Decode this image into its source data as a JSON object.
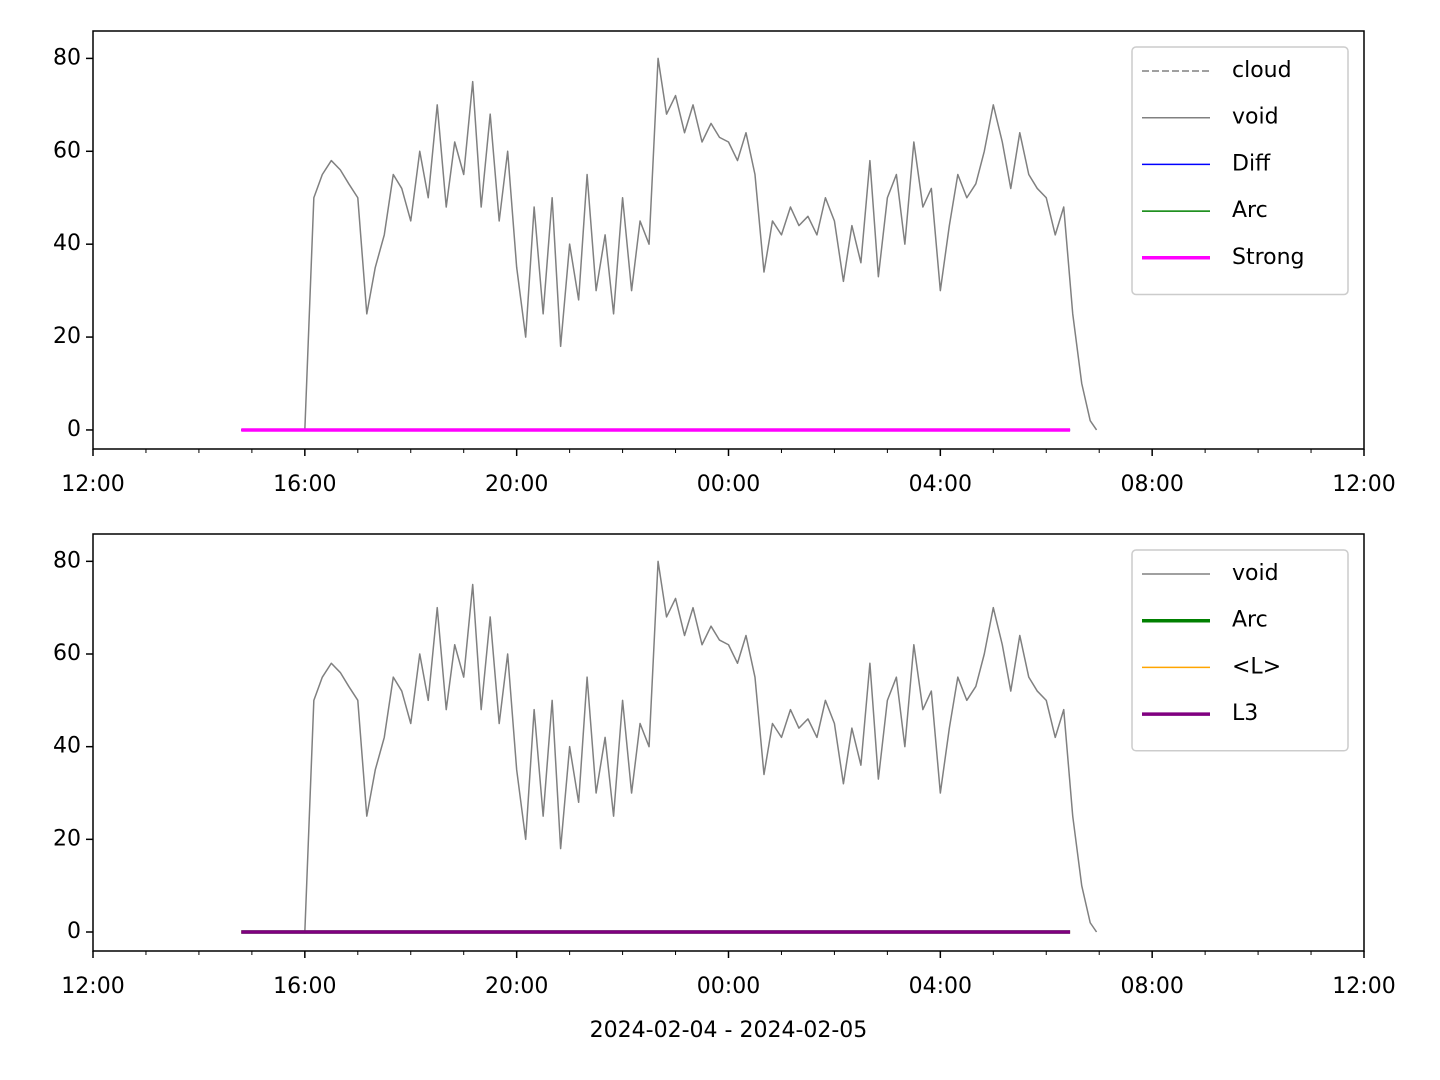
{
  "chart_data": [
    {
      "type": "line",
      "xlim": [
        12,
        36
      ],
      "ylim": [
        -4.1,
        85.9
      ],
      "xticks": [
        {
          "value": 12,
          "label": "12:00"
        },
        {
          "value": 16,
          "label": "16:00"
        },
        {
          "value": 20,
          "label": "20:00"
        },
        {
          "value": 24,
          "label": "00:00"
        },
        {
          "value": 28,
          "label": "04:00"
        },
        {
          "value": 32,
          "label": "08:00"
        },
        {
          "value": 36,
          "label": "12:00"
        }
      ],
      "xminorticks": [
        13,
        14,
        15,
        17,
        18,
        19,
        21,
        22,
        23,
        25,
        26,
        27,
        29,
        30,
        31,
        33,
        34,
        35
      ],
      "yticks": [
        0,
        20,
        40,
        60,
        80
      ],
      "legend": "upper right",
      "series": [
        {
          "name": "cloud",
          "color": "#808080",
          "width": 1.5,
          "linestyle": "dashed",
          "x": [
            14.8,
            30.45
          ],
          "values": [
            0,
            0
          ]
        },
        {
          "name": "void",
          "color": "#808080",
          "width": 1.5,
          "linestyle": "solid",
          "x": [
            16.0,
            16.17,
            16.33,
            16.5,
            16.67,
            16.83,
            17.0,
            17.17,
            17.33,
            17.5,
            17.67,
            17.83,
            18.0,
            18.17,
            18.33,
            18.5,
            18.67,
            18.83,
            19.0,
            19.17,
            19.33,
            19.5,
            19.67,
            19.83,
            20.0,
            20.17,
            20.33,
            20.5,
            20.67,
            20.83,
            21.0,
            21.17,
            21.33,
            21.5,
            21.67,
            21.83,
            22.0,
            22.17,
            22.33,
            22.5,
            22.67,
            22.83,
            23.0,
            23.17,
            23.33,
            23.5,
            23.67,
            23.83,
            24.0,
            24.17,
            24.33,
            24.5,
            24.67,
            24.83,
            25.0,
            25.17,
            25.33,
            25.5,
            25.67,
            25.83,
            26.0,
            26.17,
            26.33,
            26.5,
            26.67,
            26.83,
            27.0,
            27.17,
            27.33,
            27.5,
            27.67,
            27.83,
            28.0,
            28.17,
            28.33,
            28.5,
            28.67,
            28.83,
            29.0,
            29.17,
            29.33,
            29.5,
            29.67,
            29.83,
            30.0,
            30.17,
            30.33,
            30.5,
            30.67,
            30.83,
            30.95
          ],
          "values": [
            0,
            50,
            55,
            58,
            56,
            53,
            50,
            25,
            35,
            42,
            55,
            52,
            45,
            60,
            50,
            70,
            48,
            62,
            55,
            75,
            48,
            68,
            45,
            60,
            35,
            20,
            48,
            25,
            50,
            18,
            40,
            28,
            55,
            30,
            42,
            25,
            50,
            30,
            45,
            40,
            80,
            68,
            72,
            64,
            70,
            62,
            66,
            63,
            62,
            58,
            64,
            55,
            34,
            45,
            42,
            48,
            44,
            46,
            42,
            50,
            45,
            32,
            44,
            36,
            58,
            33,
            50,
            55,
            40,
            62,
            48,
            52,
            30,
            44,
            55,
            50,
            53,
            60,
            70,
            62,
            52,
            64,
            55,
            52,
            50,
            42,
            48,
            25,
            10,
            2,
            0
          ]
        },
        {
          "name": "Diff",
          "color": "#0000ff",
          "width": 1.5,
          "linestyle": "solid",
          "x": [
            14.8,
            30.45
          ],
          "values": [
            0,
            0
          ]
        },
        {
          "name": "Arc",
          "color": "#008000",
          "width": 1.5,
          "linestyle": "solid",
          "x": [
            14.8,
            30.45
          ],
          "values": [
            0,
            0
          ]
        },
        {
          "name": "Strong",
          "color": "#ff00ff",
          "width": 3.5,
          "linestyle": "solid",
          "x": [
            14.8,
            30.45
          ],
          "values": [
            0,
            0
          ]
        }
      ]
    },
    {
      "type": "line",
      "xlim": [
        12,
        36
      ],
      "ylim": [
        -4.1,
        85.9
      ],
      "xlabel": "2024-02-04 - 2024-02-05",
      "xticks": [
        {
          "value": 12,
          "label": "12:00"
        },
        {
          "value": 16,
          "label": "16:00"
        },
        {
          "value": 20,
          "label": "20:00"
        },
        {
          "value": 24,
          "label": "00:00"
        },
        {
          "value": 28,
          "label": "04:00"
        },
        {
          "value": 32,
          "label": "08:00"
        },
        {
          "value": 36,
          "label": "12:00"
        }
      ],
      "xminorticks": [
        13,
        14,
        15,
        17,
        18,
        19,
        21,
        22,
        23,
        25,
        26,
        27,
        29,
        30,
        31,
        33,
        34,
        35
      ],
      "yticks": [
        0,
        20,
        40,
        60,
        80
      ],
      "legend": "upper right",
      "series": [
        {
          "name": "void",
          "color": "#808080",
          "width": 1.5,
          "linestyle": "solid",
          "x": [
            16.0,
            16.17,
            16.33,
            16.5,
            16.67,
            16.83,
            17.0,
            17.17,
            17.33,
            17.5,
            17.67,
            17.83,
            18.0,
            18.17,
            18.33,
            18.5,
            18.67,
            18.83,
            19.0,
            19.17,
            19.33,
            19.5,
            19.67,
            19.83,
            20.0,
            20.17,
            20.33,
            20.5,
            20.67,
            20.83,
            21.0,
            21.17,
            21.33,
            21.5,
            21.67,
            21.83,
            22.0,
            22.17,
            22.33,
            22.5,
            22.67,
            22.83,
            23.0,
            23.17,
            23.33,
            23.5,
            23.67,
            23.83,
            24.0,
            24.17,
            24.33,
            24.5,
            24.67,
            24.83,
            25.0,
            25.17,
            25.33,
            25.5,
            25.67,
            25.83,
            26.0,
            26.17,
            26.33,
            26.5,
            26.67,
            26.83,
            27.0,
            27.17,
            27.33,
            27.5,
            27.67,
            27.83,
            28.0,
            28.17,
            28.33,
            28.5,
            28.67,
            28.83,
            29.0,
            29.17,
            29.33,
            29.5,
            29.67,
            29.83,
            30.0,
            30.17,
            30.33,
            30.5,
            30.67,
            30.83,
            30.95
          ],
          "values": [
            0,
            50,
            55,
            58,
            56,
            53,
            50,
            25,
            35,
            42,
            55,
            52,
            45,
            60,
            50,
            70,
            48,
            62,
            55,
            75,
            48,
            68,
            45,
            60,
            35,
            20,
            48,
            25,
            50,
            18,
            40,
            28,
            55,
            30,
            42,
            25,
            50,
            30,
            45,
            40,
            80,
            68,
            72,
            64,
            70,
            62,
            66,
            63,
            62,
            58,
            64,
            55,
            34,
            45,
            42,
            48,
            44,
            46,
            42,
            50,
            45,
            32,
            44,
            36,
            58,
            33,
            50,
            55,
            40,
            62,
            48,
            52,
            30,
            44,
            55,
            50,
            53,
            60,
            70,
            62,
            52,
            64,
            55,
            52,
            50,
            42,
            48,
            25,
            10,
            2,
            0
          ]
        },
        {
          "name": "Arc",
          "color": "#008000",
          "width": 3.5,
          "linestyle": "solid",
          "x": [
            14.8,
            30.45
          ],
          "values": [
            0,
            0
          ]
        },
        {
          "name": "<L>",
          "color": "#ffa500",
          "width": 1.5,
          "linestyle": "solid",
          "x": [
            14.8,
            30.45
          ],
          "values": [
            0,
            0
          ]
        },
        {
          "name": "L3",
          "color": "#800080",
          "width": 3.5,
          "linestyle": "solid",
          "x": [
            14.8,
            30.45
          ],
          "values": [
            0,
            0
          ]
        }
      ]
    }
  ]
}
